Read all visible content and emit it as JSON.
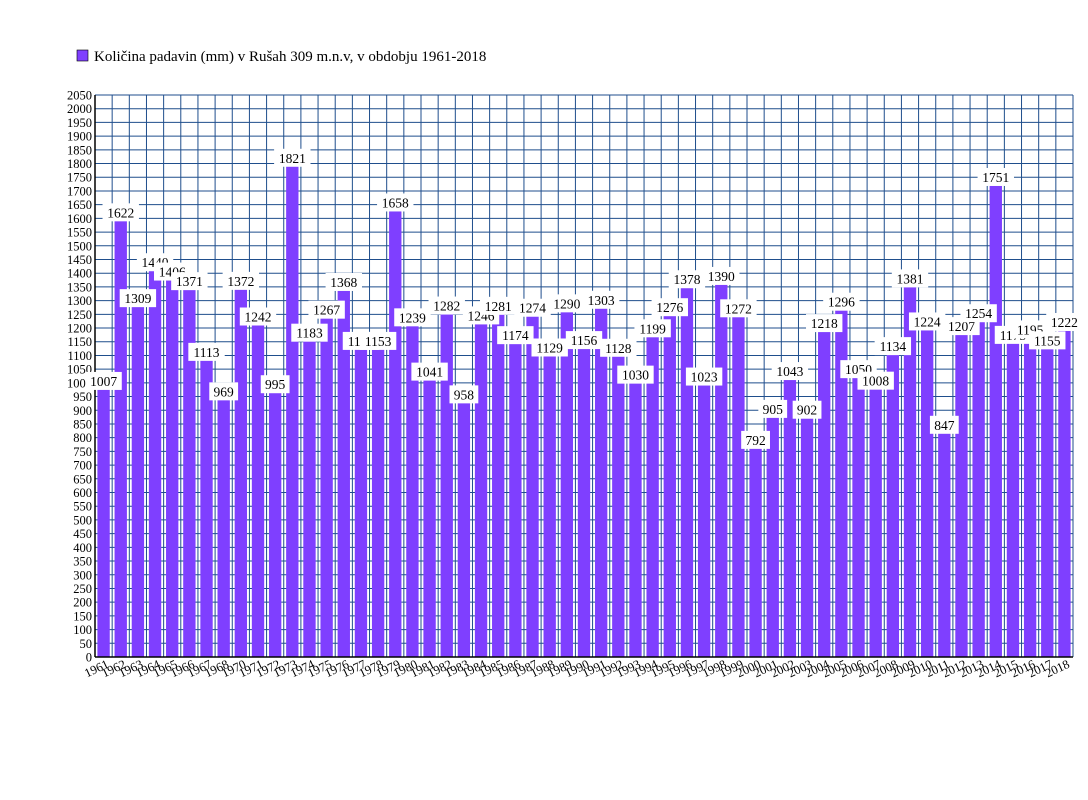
{
  "chart_data": {
    "type": "bar",
    "title": "",
    "legend": {
      "placement": "top-left",
      "entries": [
        {
          "label": "Količina padavin (mm) v Rušah 309 m.n.v, v obdobju 1961-2018",
          "color": "#7f3fff"
        }
      ]
    },
    "xlabel": "",
    "ylabel": "",
    "ylim": [
      0,
      2050
    ],
    "ytick_step": 50,
    "grid": true,
    "colors": {
      "bar": "#7f3fff",
      "grid": "#1f4e8c",
      "label_bg": "#ffffff"
    },
    "series": [
      {
        "name": "Količina padavin (mm) v Rušah 309 m.n.v, v obdobju 1961-2018",
        "values": [
          1007,
          1622,
          1309,
          1440,
          1406,
          1371,
          1113,
          969,
          1372,
          1242,
          995,
          1821,
          1183,
          1267,
          1368,
          1153,
          1153,
          1658,
          1239,
          1041,
          1282,
          958,
          1246,
          1281,
          1174,
          1274,
          1129,
          1290,
          1156,
          1303,
          1128,
          1030,
          1199,
          1276,
          1378,
          1023,
          1390,
          1272,
          792,
          905,
          1043,
          902,
          1218,
          1296,
          1050,
          1008,
          1134,
          1381,
          1224,
          847,
          1207,
          1254,
          1751,
          1175,
          1195,
          1155,
          1222
        ]
      }
    ],
    "categories": [
      "1961",
      "1962",
      "1963",
      "1964",
      "1965",
      "1966",
      "1967",
      "1968",
      "1970",
      "1971",
      "1972",
      "1973",
      "1974",
      "1975",
      "1976",
      "1977",
      "1978",
      "1979",
      "1980",
      "1981",
      "1982",
      "1983",
      "1984",
      "1985",
      "1986",
      "1987",
      "1988",
      "1989",
      "1990",
      "1991",
      "1992",
      "1993",
      "1994",
      "1995",
      "1996",
      "1997",
      "1998",
      "1999",
      "2000",
      "2001",
      "2002",
      "2003",
      "2004",
      "2005",
      "2006",
      "2007",
      "2008",
      "2009",
      "2010",
      "2011",
      "2012",
      "2013",
      "2014",
      "2015",
      "2016",
      "2017",
      "2018"
    ]
  }
}
